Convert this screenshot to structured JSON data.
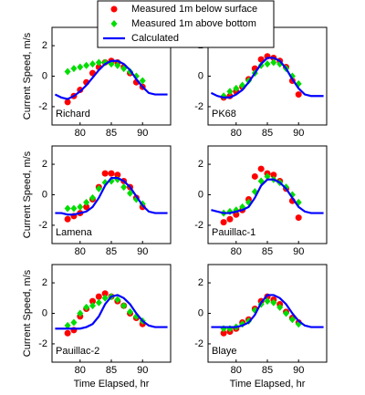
{
  "chart_data": [
    {
      "type": "line",
      "label": "Richard",
      "ylabel": "Current Speed, m/s",
      "xlim": [
        75.5,
        94.5
      ],
      "ylim": [
        -3.2,
        3.2
      ],
      "xticks": [
        80,
        85,
        90
      ],
      "yticks": [
        -2,
        0,
        2
      ],
      "series": [
        {
          "name": "Measured 1m below surface",
          "color": "#ff0000",
          "marker": "circle",
          "x": [
            78,
            79,
            80,
            81,
            82,
            83,
            84,
            85,
            86,
            87,
            88,
            89,
            90
          ],
          "values": [
            -1.7,
            -1.3,
            -0.9,
            -0.4,
            0.2,
            0.6,
            0.9,
            1.0,
            0.9,
            0.6,
            0.2,
            -0.4,
            -0.7
          ]
        },
        {
          "name": "Measured 1m above bottom",
          "color": "#00dd00",
          "marker": "diamond",
          "x": [
            78,
            79,
            80,
            81,
            82,
            83,
            84,
            85,
            86,
            87,
            88,
            89,
            90
          ],
          "values": [
            0.3,
            0.5,
            0.6,
            0.7,
            0.8,
            0.9,
            0.9,
            0.8,
            0.7,
            0.5,
            0.3,
            0.0,
            -0.3
          ]
        },
        {
          "name": "Calculated",
          "color": "#0000ff",
          "marker": "line",
          "x": [
            76,
            77,
            78,
            79,
            80,
            81,
            82,
            83,
            84,
            85,
            86,
            87,
            88,
            89,
            90,
            91,
            92,
            93,
            94
          ],
          "values": [
            -1.2,
            -1.4,
            -1.5,
            -1.3,
            -1.0,
            -0.6,
            -0.1,
            0.4,
            0.8,
            1.0,
            1.0,
            0.8,
            0.4,
            -0.2,
            -0.7,
            -1.1,
            -1.2,
            -1.2,
            -1.2
          ]
        }
      ]
    },
    {
      "type": "line",
      "label": "PK68",
      "xlim": [
        75.5,
        94.5
      ],
      "ylim": [
        -3.2,
        3.2
      ],
      "xticks": [
        80,
        85,
        90
      ],
      "yticks": [
        -2,
        0,
        2
      ],
      "series": [
        {
          "color": "#ff0000",
          "marker": "circle",
          "x": [
            78,
            79,
            80,
            81,
            82,
            83,
            84,
            85,
            86,
            87,
            88,
            89,
            90
          ],
          "values": [
            -1.4,
            -1.3,
            -1.0,
            -0.7,
            -0.2,
            0.5,
            1.1,
            1.3,
            1.2,
            1.0,
            0.6,
            -0.3,
            -1.2
          ]
        },
        {
          "color": "#00dd00",
          "marker": "diamond",
          "x": [
            78,
            79,
            80,
            81,
            82,
            83,
            84,
            85,
            86,
            87,
            88,
            89,
            90
          ],
          "values": [
            -1.3,
            -1.0,
            -0.8,
            -0.6,
            -0.3,
            0.2,
            0.7,
            0.8,
            0.9,
            0.8,
            0.5,
            0.0,
            -0.5
          ]
        },
        {
          "color": "#0000ff",
          "marker": "line",
          "x": [
            76,
            77,
            78,
            79,
            80,
            81,
            82,
            83,
            84,
            85,
            86,
            87,
            88,
            89,
            90,
            91,
            92,
            93,
            94
          ],
          "values": [
            -1.1,
            -1.3,
            -1.4,
            -1.4,
            -1.2,
            -0.9,
            -0.4,
            0.2,
            0.8,
            1.2,
            1.2,
            1.0,
            0.5,
            -0.2,
            -0.8,
            -1.2,
            -1.3,
            -1.3,
            -1.3
          ]
        }
      ]
    },
    {
      "type": "line",
      "label": "Lamena",
      "ylabel": "Current Speed, m/s",
      "xlim": [
        75.5,
        94.5
      ],
      "ylim": [
        -3.2,
        3.2
      ],
      "xticks": [
        80,
        85,
        90
      ],
      "yticks": [
        -2,
        0,
        2
      ],
      "series": [
        {
          "color": "#ff0000",
          "marker": "circle",
          "x": [
            78,
            79,
            80,
            81,
            82,
            83,
            84,
            85,
            86,
            87,
            88,
            89,
            90
          ],
          "values": [
            -1.6,
            -1.4,
            -1.2,
            -0.8,
            -0.3,
            0.5,
            1.4,
            1.4,
            1.3,
            0.9,
            0.5,
            -0.2,
            -0.8
          ]
        },
        {
          "color": "#00dd00",
          "marker": "diamond",
          "x": [
            78,
            79,
            80,
            81,
            82,
            83,
            84,
            85,
            86,
            87,
            88,
            89,
            90
          ],
          "values": [
            -0.9,
            -0.9,
            -0.8,
            -0.5,
            -0.2,
            0.4,
            0.8,
            0.9,
            1.0,
            0.5,
            0.1,
            -0.3,
            -0.6
          ]
        },
        {
          "color": "#0000ff",
          "marker": "line",
          "x": [
            76,
            77,
            78,
            79,
            80,
            81,
            82,
            83,
            84,
            85,
            86,
            87,
            88,
            89,
            90,
            91,
            92,
            93,
            94
          ],
          "values": [
            -1.2,
            -1.2,
            -1.3,
            -1.3,
            -1.2,
            -1.1,
            -0.8,
            -0.2,
            0.6,
            1.1,
            1.1,
            0.9,
            0.5,
            -0.1,
            -0.7,
            -1.1,
            -1.2,
            -1.2,
            -1.2
          ]
        }
      ]
    },
    {
      "type": "line",
      "label": "Pauillac-1",
      "xlim": [
        75.5,
        94.5
      ],
      "ylim": [
        -3.2,
        3.2
      ],
      "xticks": [
        80,
        85,
        90
      ],
      "yticks": [
        -2,
        0,
        2
      ],
      "series": [
        {
          "color": "#ff0000",
          "marker": "circle",
          "x": [
            78,
            79,
            80,
            81,
            82,
            83,
            84,
            85,
            86,
            87,
            88,
            89,
            90
          ],
          "values": [
            -1.8,
            -1.6,
            -1.3,
            -1.0,
            -0.3,
            1.2,
            1.7,
            1.4,
            1.3,
            0.9,
            0.4,
            -0.4,
            -1.5
          ]
        },
        {
          "color": "#00dd00",
          "marker": "diamond",
          "x": [
            78,
            79,
            80,
            81,
            82,
            83,
            84,
            85,
            86,
            87,
            88,
            89,
            90
          ],
          "values": [
            -1.2,
            -1.1,
            -1.0,
            -0.8,
            -0.5,
            0.2,
            0.9,
            1.2,
            1.0,
            0.8,
            0.5,
            0.0,
            -0.5
          ]
        },
        {
          "color": "#0000ff",
          "marker": "line",
          "x": [
            76,
            77,
            78,
            79,
            80,
            81,
            82,
            83,
            84,
            85,
            86,
            87,
            88,
            89,
            90,
            91,
            92,
            93,
            94
          ],
          "values": [
            -1.0,
            -1.1,
            -1.2,
            -1.2,
            -1.1,
            -1.0,
            -0.8,
            -0.2,
            0.6,
            1.0,
            1.0,
            0.8,
            0.4,
            -0.2,
            -0.8,
            -1.1,
            -1.2,
            -1.2,
            -1.2
          ]
        }
      ]
    },
    {
      "type": "line",
      "label": "Pauillac-2",
      "ylabel": "Current Speed, m/s",
      "xlabel": "Time Elapsed, hr",
      "xlim": [
        75.5,
        94.5
      ],
      "ylim": [
        -3.2,
        3.2
      ],
      "xticks": [
        80,
        85,
        90
      ],
      "yticks": [
        -2,
        0,
        2
      ],
      "series": [
        {
          "color": "#ff0000",
          "marker": "circle",
          "x": [
            78,
            79,
            80,
            81,
            82,
            83,
            84,
            85,
            86,
            87,
            88,
            89,
            90
          ],
          "values": [
            -1.3,
            -1.1,
            -0.2,
            0.3,
            0.8,
            1.1,
            1.3,
            1.1,
            0.8,
            0.5,
            0.0,
            -0.3,
            -0.7
          ]
        },
        {
          "color": "#00dd00",
          "marker": "diamond",
          "x": [
            78,
            79,
            80,
            81,
            82,
            83,
            84,
            85,
            86,
            87,
            88,
            89,
            90
          ],
          "values": [
            -0.8,
            -0.6,
            0.0,
            0.4,
            0.5,
            0.7,
            1.0,
            1.1,
            0.9,
            0.5,
            0.1,
            -0.2,
            -0.5
          ]
        },
        {
          "color": "#0000ff",
          "marker": "line",
          "x": [
            76,
            77,
            78,
            79,
            80,
            81,
            82,
            83,
            84,
            85,
            86,
            87,
            88,
            89,
            90,
            91,
            92,
            93,
            94
          ],
          "values": [
            -1.0,
            -1.0,
            -1.0,
            -1.0,
            -1.0,
            -0.9,
            -0.7,
            -0.2,
            0.6,
            1.1,
            1.2,
            1.0,
            0.6,
            0.0,
            -0.5,
            -0.8,
            -0.9,
            -0.9,
            -0.9
          ]
        }
      ]
    },
    {
      "type": "line",
      "label": "Blaye",
      "xlabel": "Time Elapsed, hr",
      "xlim": [
        75.5,
        94.5
      ],
      "ylim": [
        -3.2,
        3.2
      ],
      "xticks": [
        80,
        85,
        90
      ],
      "yticks": [
        -2,
        0,
        2
      ],
      "series": [
        {
          "color": "#ff0000",
          "marker": "circle",
          "x": [
            78,
            79,
            80,
            81,
            82,
            83,
            84,
            85,
            86,
            87,
            88,
            89,
            90
          ],
          "values": [
            -1.3,
            -1.2,
            -1.0,
            -0.6,
            -0.4,
            0.3,
            0.8,
            1.1,
            0.9,
            0.6,
            0.1,
            -0.3,
            -0.6
          ]
        },
        {
          "color": "#00dd00",
          "marker": "diamond",
          "x": [
            78,
            79,
            80,
            81,
            82,
            83,
            84,
            85,
            86,
            87,
            88,
            89,
            90
          ],
          "values": [
            -1.0,
            -1.0,
            -0.9,
            -0.7,
            -0.5,
            0.2,
            0.6,
            0.8,
            0.7,
            0.4,
            0.0,
            -0.4,
            -0.7
          ]
        },
        {
          "color": "#0000ff",
          "marker": "line",
          "x": [
            76,
            77,
            78,
            79,
            80,
            81,
            82,
            83,
            84,
            85,
            86,
            87,
            88,
            89,
            90,
            91,
            92,
            93,
            94
          ],
          "values": [
            -0.9,
            -0.9,
            -0.9,
            -0.9,
            -0.9,
            -0.8,
            -0.6,
            -0.1,
            0.7,
            1.2,
            1.2,
            1.0,
            0.6,
            0.0,
            -0.5,
            -0.8,
            -0.9,
            -0.9,
            -0.9
          ]
        }
      ]
    }
  ]
}
